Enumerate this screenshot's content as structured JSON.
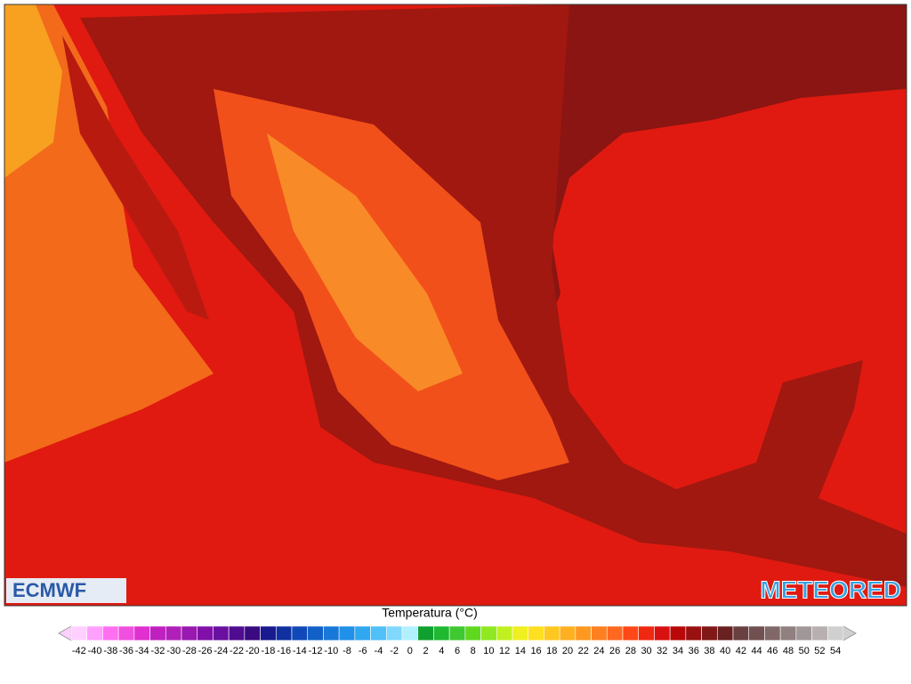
{
  "map": {
    "logo_left": "ECMWF",
    "logo_right": "METEORED"
  },
  "legend": {
    "title": "Temperatura (°C)",
    "ticks": [
      -42,
      -40,
      -38,
      -36,
      -34,
      -32,
      -30,
      -28,
      -26,
      -24,
      -22,
      -20,
      -18,
      -16,
      -14,
      -12,
      -10,
      -8,
      -6,
      -4,
      -2,
      0,
      2,
      4,
      6,
      8,
      10,
      12,
      14,
      16,
      18,
      20,
      22,
      24,
      26,
      28,
      30,
      32,
      34,
      36,
      38,
      40,
      42,
      44,
      46,
      48,
      50,
      52,
      54
    ],
    "colors": [
      "#ffd0ff",
      "#ffa0ff",
      "#ff70f0",
      "#f050e0",
      "#e030d0",
      "#c020c0",
      "#b020b8",
      "#9818b0",
      "#8010a8",
      "#6a10a0",
      "#500c90",
      "#3a0a80",
      "#1a1a90",
      "#1030a0",
      "#1048b8",
      "#1060c8",
      "#1878d8",
      "#2090e8",
      "#30a8f0",
      "#50c0f8",
      "#80d8ff",
      "#b0f0ff",
      "#10a030",
      "#20b830",
      "#40c830",
      "#60d820",
      "#90e820",
      "#c0f020",
      "#f0f020",
      "#ffe020",
      "#ffc820",
      "#ffb020",
      "#ff9820",
      "#ff8020",
      "#ff6820",
      "#ff4818",
      "#f02810",
      "#d81010",
      "#b80808",
      "#981010",
      "#801818",
      "#682020",
      "#684040",
      "#705050",
      "#806868",
      "#908080",
      "#a09898",
      "#b8b0b0",
      "#d0d0d0"
    ]
  }
}
